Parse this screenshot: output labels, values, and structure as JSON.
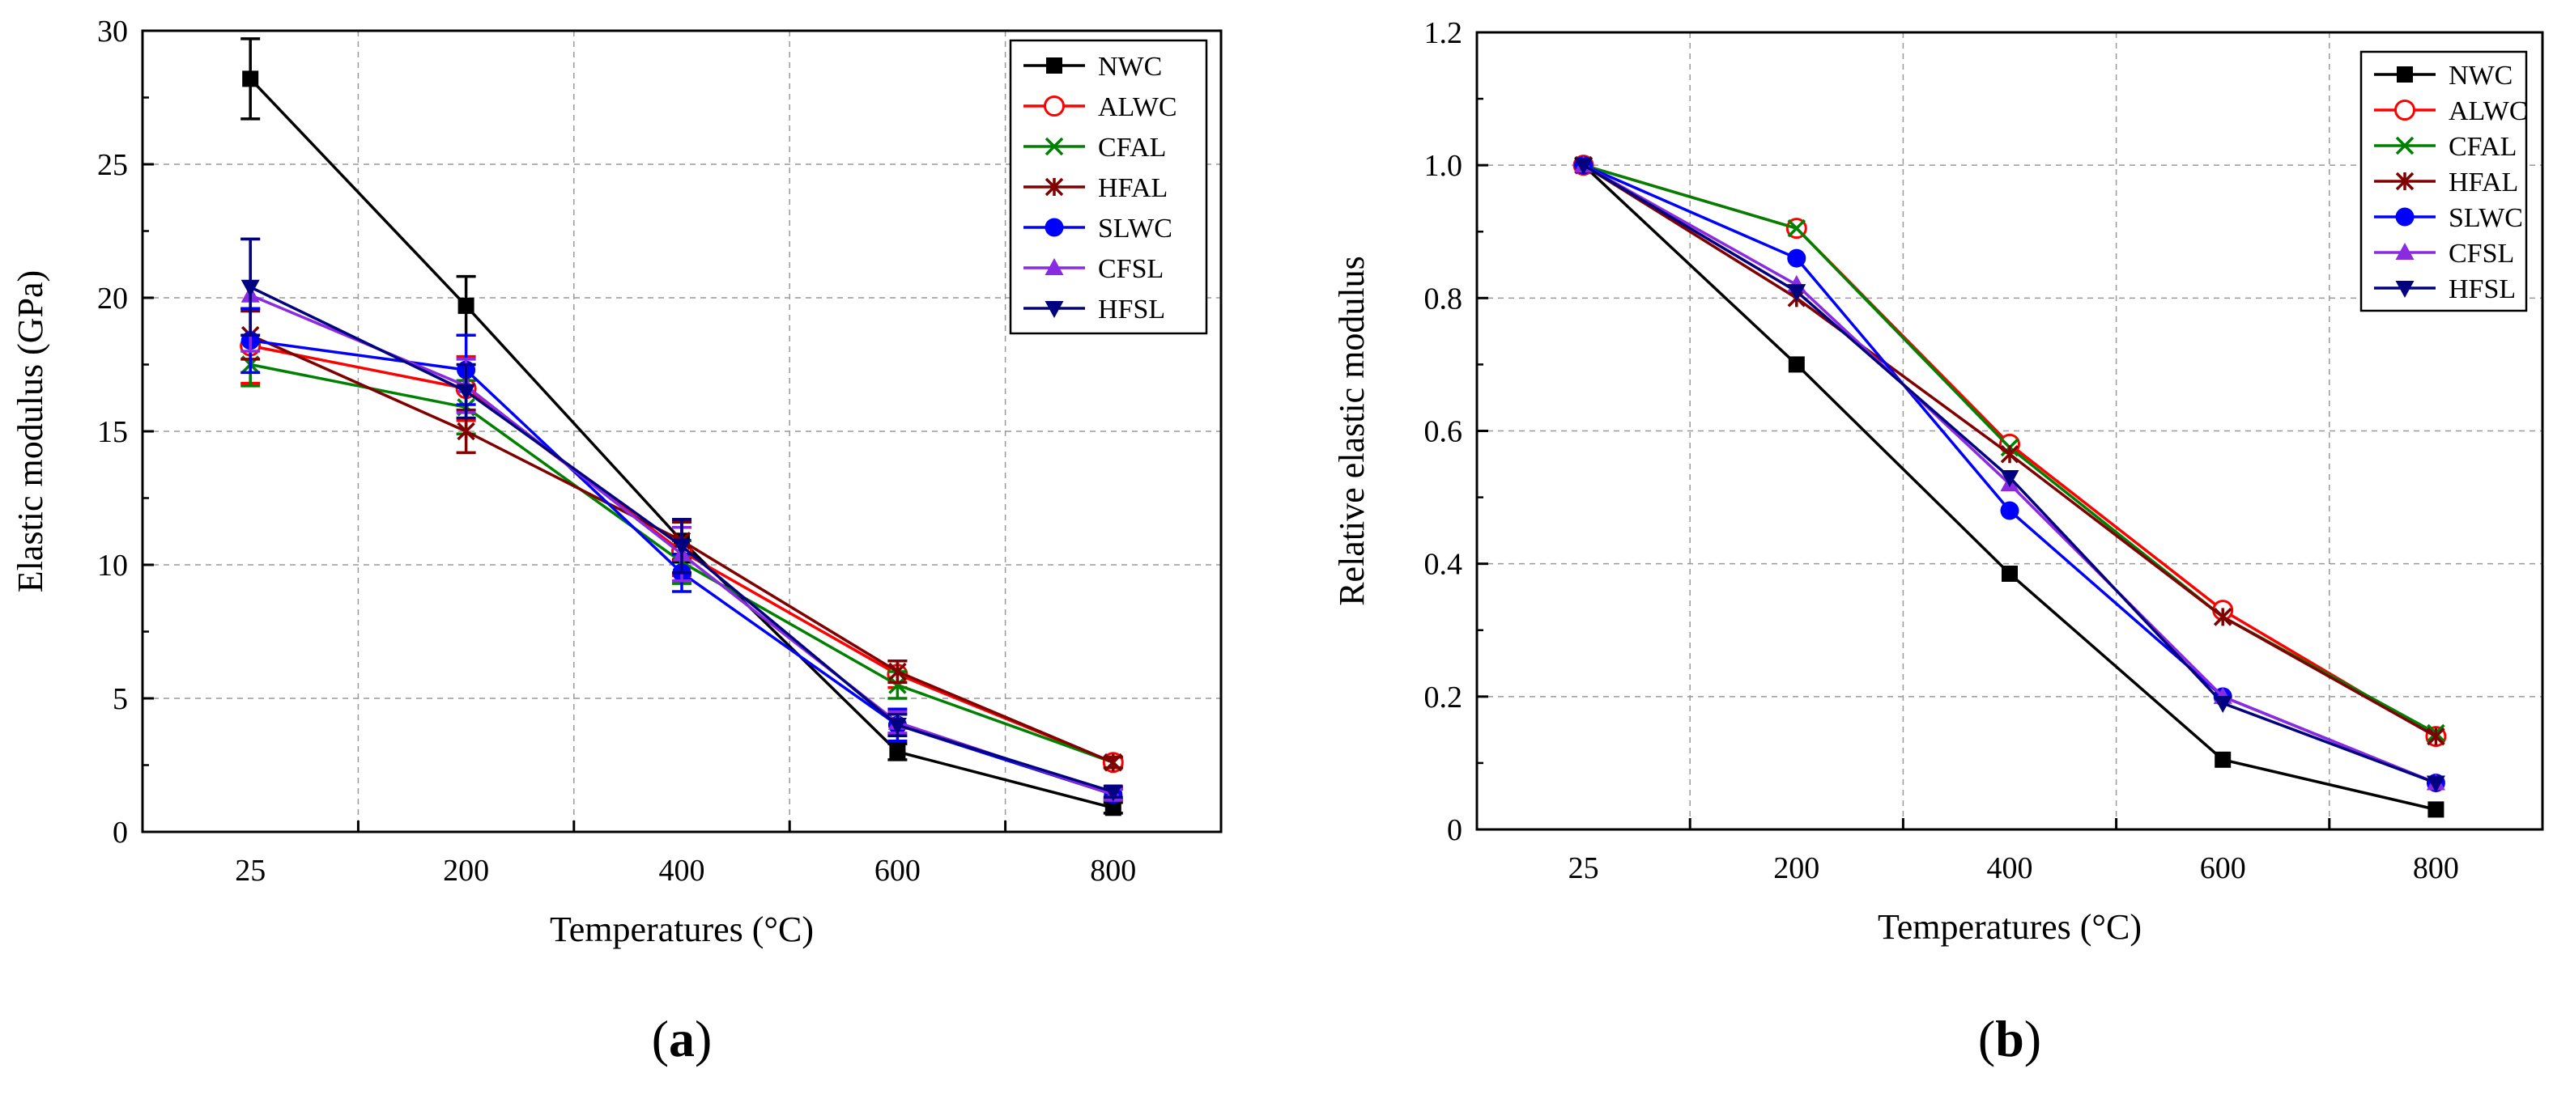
{
  "chart_data": [
    {
      "id": "a",
      "type": "line",
      "panel_label": "a",
      "xlabel": "Temperatures (°C)",
      "ylabel": "Elastic modulus (GPa)",
      "categories": [
        "25",
        "200",
        "400",
        "600",
        "800"
      ],
      "ylim": [
        0,
        30
      ],
      "yticks": [
        "0",
        "5",
        "10",
        "15",
        "20",
        "25",
        "30"
      ],
      "grid": true,
      "legend_position": "top-right",
      "series": [
        {
          "name": "NWC",
          "color": "#000000",
          "marker": "square",
          "values": [
            28.2,
            19.7,
            10.9,
            3.0,
            0.9
          ],
          "errors": [
            1.5,
            1.1,
            0.8,
            0.3,
            0.2
          ]
        },
        {
          "name": "ALWC",
          "color": "#ff0000",
          "marker": "circle-open",
          "values": [
            18.2,
            16.6,
            10.5,
            5.9,
            2.6
          ],
          "errors": [
            1.4,
            1.2,
            0.9,
            0.5,
            0.2
          ]
        },
        {
          "name": "CFAL",
          "color": "#008000",
          "marker": "x",
          "values": [
            17.5,
            15.9,
            10.1,
            5.5,
            2.6
          ],
          "errors": [
            0.8,
            1.0,
            0.8,
            0.5,
            0.2
          ]
        },
        {
          "name": "HFAL",
          "color": "#800000",
          "marker": "asterisk",
          "values": [
            18.6,
            15.0,
            10.9,
            6.0,
            2.6
          ],
          "errors": [
            0.9,
            0.8,
            0.7,
            0.4,
            0.2
          ]
        },
        {
          "name": "SLWC",
          "color": "#0000ff",
          "marker": "circle",
          "values": [
            18.4,
            17.3,
            9.7,
            4.0,
            1.4
          ],
          "errors": [
            1.2,
            1.3,
            0.7,
            0.6,
            0.2
          ]
        },
        {
          "name": "CFSL",
          "color": "#8a2be2",
          "marker": "triangle-up",
          "values": [
            20.1,
            16.7,
            10.4,
            4.1,
            1.4
          ],
          "errors": [
            2.1,
            1.0,
            1.0,
            0.4,
            0.2
          ]
        },
        {
          "name": "HFSL",
          "color": "#000080",
          "marker": "triangle-down",
          "values": [
            20.4,
            16.5,
            10.7,
            4.0,
            1.5
          ],
          "errors": [
            1.8,
            1.0,
            1.0,
            0.4,
            0.2
          ]
        }
      ]
    },
    {
      "id": "b",
      "type": "line",
      "panel_label": "b",
      "xlabel": "Temperatures (°C)",
      "ylabel": "Relative elastic modulus",
      "categories": [
        "25",
        "200",
        "400",
        "600",
        "800"
      ],
      "ylim": [
        0,
        1.2
      ],
      "yticks": [
        "0",
        "0.2",
        "0.4",
        "0.6",
        "0.8",
        "1.0",
        "1.2"
      ],
      "grid": true,
      "legend_position": "top-right",
      "series": [
        {
          "name": "NWC",
          "color": "#000000",
          "marker": "square",
          "values": [
            1.0,
            0.7,
            0.385,
            0.105,
            0.03
          ]
        },
        {
          "name": "ALWC",
          "color": "#ff0000",
          "marker": "circle-open",
          "values": [
            1.0,
            0.905,
            0.58,
            0.33,
            0.14
          ]
        },
        {
          "name": "CFAL",
          "color": "#008000",
          "marker": "x",
          "values": [
            1.0,
            0.905,
            0.575,
            0.32,
            0.145
          ]
        },
        {
          "name": "HFAL",
          "color": "#800000",
          "marker": "asterisk",
          "values": [
            1.0,
            0.8,
            0.565,
            0.32,
            0.14
          ]
        },
        {
          "name": "SLWC",
          "color": "#0000ff",
          "marker": "circle",
          "values": [
            1.0,
            0.86,
            0.48,
            0.2,
            0.07
          ]
        },
        {
          "name": "CFSL",
          "color": "#8a2be2",
          "marker": "triangle-up",
          "values": [
            1.0,
            0.82,
            0.52,
            0.2,
            0.07
          ]
        },
        {
          "name": "HFSL",
          "color": "#000080",
          "marker": "triangle-down",
          "values": [
            1.0,
            0.81,
            0.53,
            0.19,
            0.07
          ]
        }
      ]
    }
  ]
}
